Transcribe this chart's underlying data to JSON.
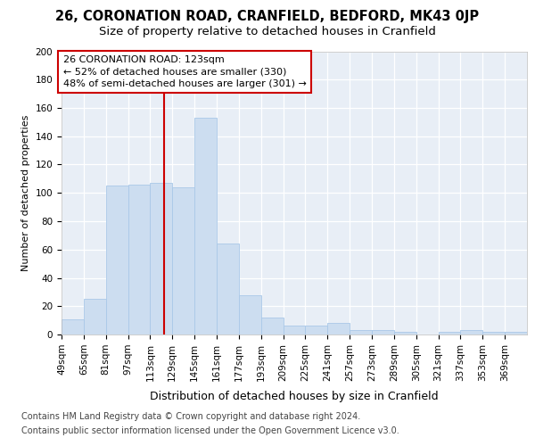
{
  "title1": "26, CORONATION ROAD, CRANFIELD, BEDFORD, MK43 0JP",
  "title2": "Size of property relative to detached houses in Cranfield",
  "xlabel": "Distribution of detached houses by size in Cranfield",
  "ylabel": "Number of detached properties",
  "footer1": "Contains HM Land Registry data © Crown copyright and database right 2024.",
  "footer2": "Contains public sector information licensed under the Open Government Licence v3.0.",
  "bins": [
    49,
    65,
    81,
    97,
    113,
    129,
    145,
    161,
    177,
    193,
    209,
    225,
    241,
    257,
    273,
    289,
    305,
    321,
    337,
    353,
    369
  ],
  "bar_values": [
    11,
    25,
    105,
    106,
    107,
    104,
    153,
    64,
    28,
    12,
    6,
    6,
    8,
    3,
    3,
    2,
    0,
    2,
    3,
    2,
    2
  ],
  "bar_color": "#ccddf0",
  "bar_edgecolor": "#aac8e8",
  "property_size": 123,
  "vline_color": "#cc0000",
  "annotation_line1": "26 CORONATION ROAD: 123sqm",
  "annotation_line2": "← 52% of detached houses are smaller (330)",
  "annotation_line3": "48% of semi-detached houses are larger (301) →",
  "annotation_box_edgecolor": "#cc0000",
  "ylim": [
    0,
    200
  ],
  "yticks": [
    0,
    20,
    40,
    60,
    80,
    100,
    120,
    140,
    160,
    180,
    200
  ],
  "plot_bg": "#e8eef6",
  "fig_bg": "#ffffff",
  "grid_color": "#ffffff",
  "title1_fontsize": 10.5,
  "title2_fontsize": 9.5,
  "xlabel_fontsize": 9,
  "ylabel_fontsize": 8,
  "footer_fontsize": 7,
  "tick_fontsize": 7.5,
  "ann_fontsize": 8
}
